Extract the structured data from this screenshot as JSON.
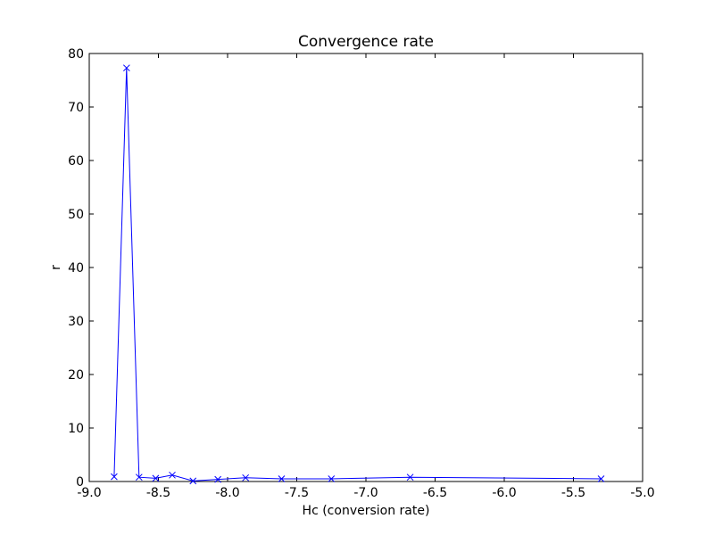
{
  "chart_data": {
    "type": "line",
    "title": "Convergence rate",
    "xlabel": "Hc (conversion rate)",
    "ylabel": "r",
    "xlim": [
      -9.0,
      -5.0
    ],
    "ylim": [
      0,
      80
    ],
    "xticks": [
      "-9.0",
      "-8.5",
      "-8.0",
      "-7.5",
      "-7.0",
      "-6.5",
      "-6.0",
      "-5.5",
      "-5.0"
    ],
    "xtick_values": [
      -9.0,
      -8.5,
      -8.0,
      -7.5,
      -7.0,
      -6.5,
      -6.0,
      -5.5,
      -5.0
    ],
    "yticks": [
      "0",
      "10",
      "20",
      "30",
      "40",
      "50",
      "60",
      "70",
      "80"
    ],
    "ytick_values": [
      0,
      10,
      20,
      30,
      40,
      50,
      60,
      70,
      80
    ],
    "grid": false,
    "series": [
      {
        "color": "#0000ff",
        "marker": "x",
        "x": [
          -8.82,
          -8.73,
          -8.64,
          -8.52,
          -8.4,
          -8.25,
          -8.07,
          -7.87,
          -7.61,
          -7.25,
          -6.68,
          -5.3
        ],
        "y": [
          0.9,
          77.3,
          0.8,
          0.6,
          1.2,
          0.1,
          0.4,
          0.7,
          0.5,
          0.5,
          0.8,
          0.5
        ]
      }
    ]
  }
}
